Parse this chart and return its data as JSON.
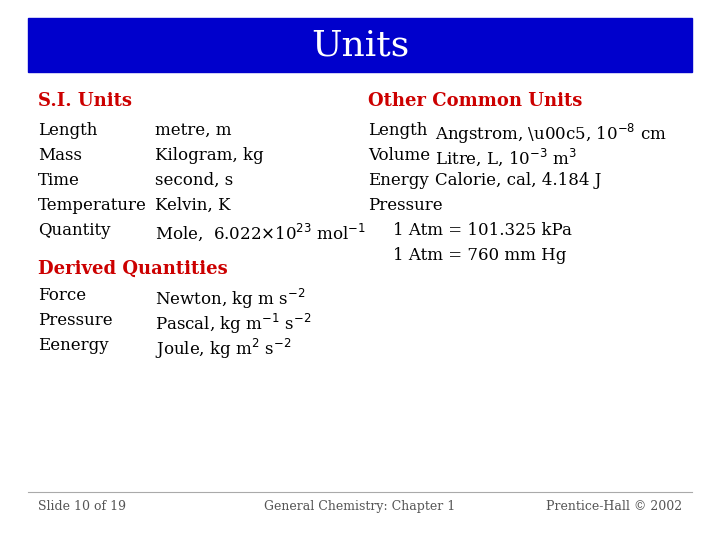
{
  "title": "Units",
  "title_bg_color": "#0000cc",
  "title_text_color": "#ffffff",
  "title_fontsize": 26,
  "body_bg_color": "#ffffff",
  "heading_color": "#cc0000",
  "text_color": "#000000",
  "footer_color": "#555555",
  "footer_left": "Slide 10 of 19",
  "footer_center": "General Chemistry: Chapter 1",
  "footer_right": "Prentice-Hall © 2002",
  "fs": 12,
  "heading_fs": 13
}
